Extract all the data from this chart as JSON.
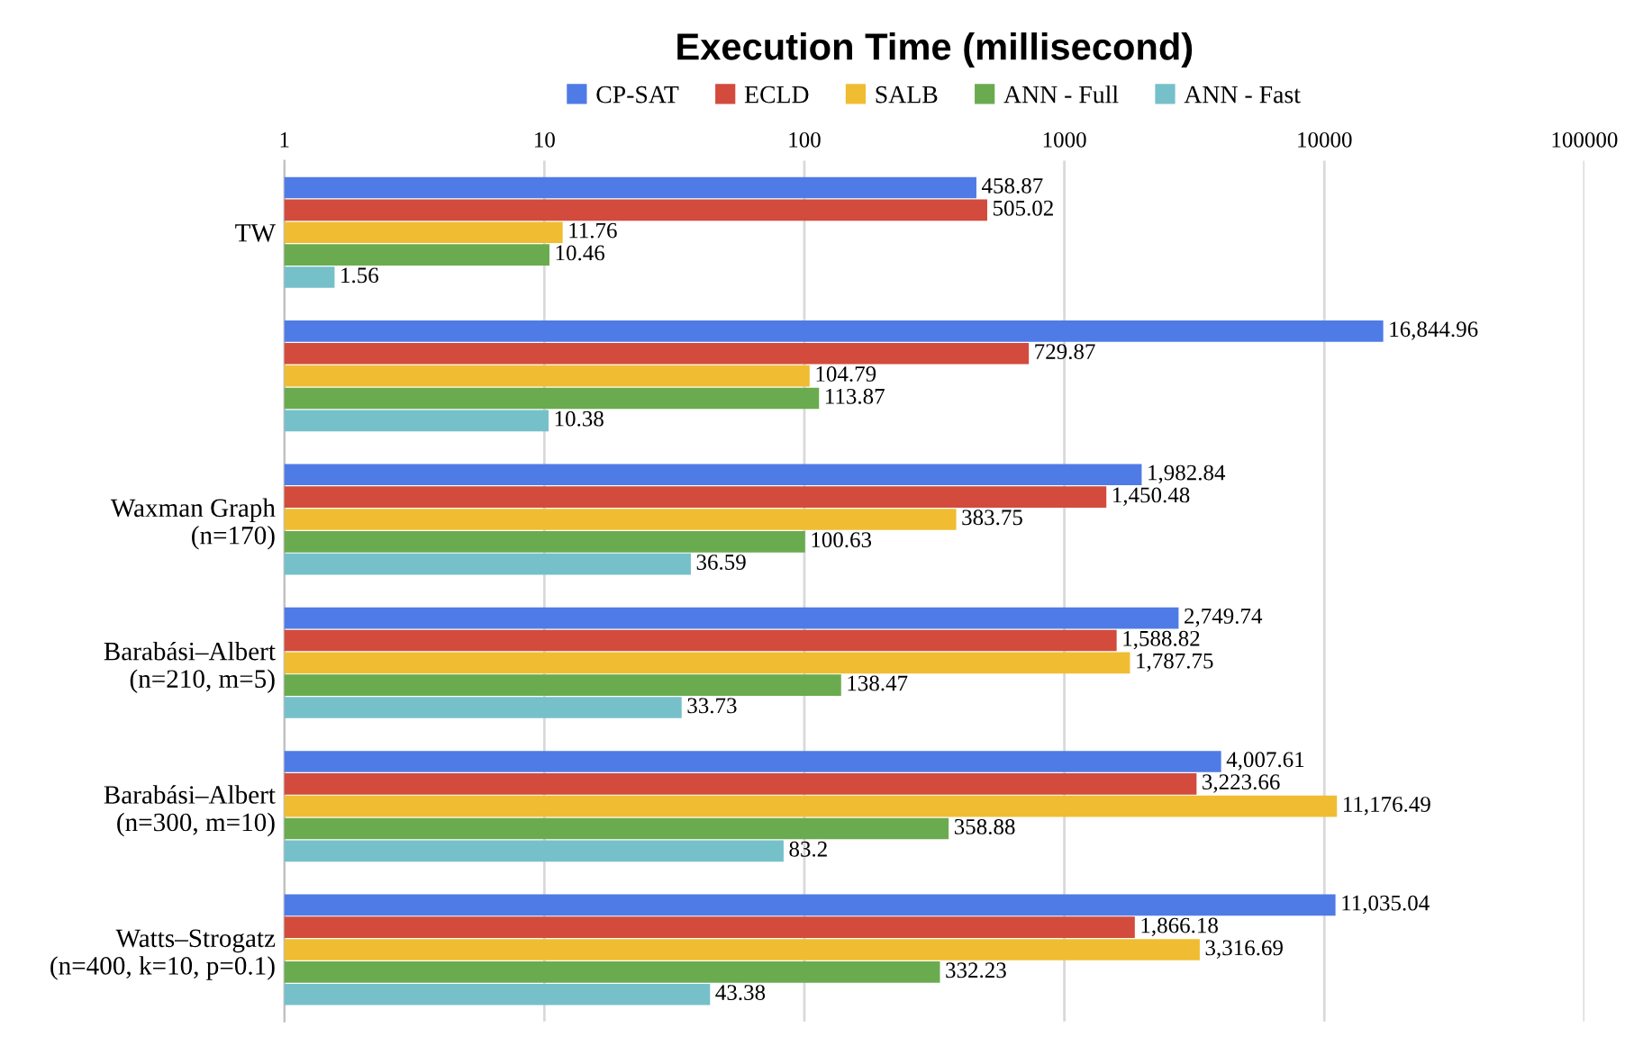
{
  "chart_data": {
    "type": "bar",
    "orientation": "horizontal",
    "title": "Execution Time (millisecond)",
    "categories": [
      "TW",
      null,
      "Waxman Graph\n(n=170)",
      "Barabási–Albert\n(n=210, m=5)",
      "Barabási–Albert\n(n=300, m=10)",
      "Watts–Strogatz\n(n=400, k=10, p=0.1)"
    ],
    "series": [
      {
        "name": "CP-SAT",
        "color": "#4f7be6",
        "values": [
          458.87,
          16844.96,
          1982.84,
          2749.74,
          4007.61,
          11035.04
        ],
        "value_labels": [
          "458.87",
          "16,844.96",
          "1,982.84",
          "2,749.74",
          "4,007.61",
          "11,035.04"
        ]
      },
      {
        "name": "ECLD",
        "color": "#d24b3c",
        "values": [
          505.02,
          729.87,
          1450.48,
          1588.82,
          3223.66,
          1866.18
        ],
        "value_labels": [
          "505.02",
          "729.87",
          "1,450.48",
          "1,588.82",
          "3,223.66",
          "1,866.18"
        ]
      },
      {
        "name": "SALB",
        "color": "#f0bd32",
        "values": [
          11.76,
          104.79,
          383.75,
          1787.75,
          11176.49,
          3316.69
        ],
        "value_labels": [
          "11.76",
          "104.79",
          "383.75",
          "1,787.75",
          "11,176.49",
          "3,316.69"
        ]
      },
      {
        "name": "ANN - Full",
        "color": "#6aab4f",
        "values": [
          10.46,
          113.87,
          100.63,
          138.47,
          358.88,
          332.23
        ],
        "value_labels": [
          "10.46",
          "113.87",
          "100.63",
          "138.47",
          "358.88",
          "332.23"
        ]
      },
      {
        "name": "ANN - Fast",
        "color": "#76c0ca",
        "values": [
          1.56,
          10.38,
          36.59,
          33.73,
          83.2,
          43.38
        ],
        "value_labels": [
          "1.56",
          "10.38",
          "36.59",
          "33.73",
          "83.2",
          "43.38"
        ]
      }
    ],
    "log": "x",
    "xlim": [
      1,
      100000
    ],
    "xticks": [
      1,
      10,
      100,
      1000,
      10000,
      100000
    ],
    "grid": "x",
    "legend": "top"
  }
}
